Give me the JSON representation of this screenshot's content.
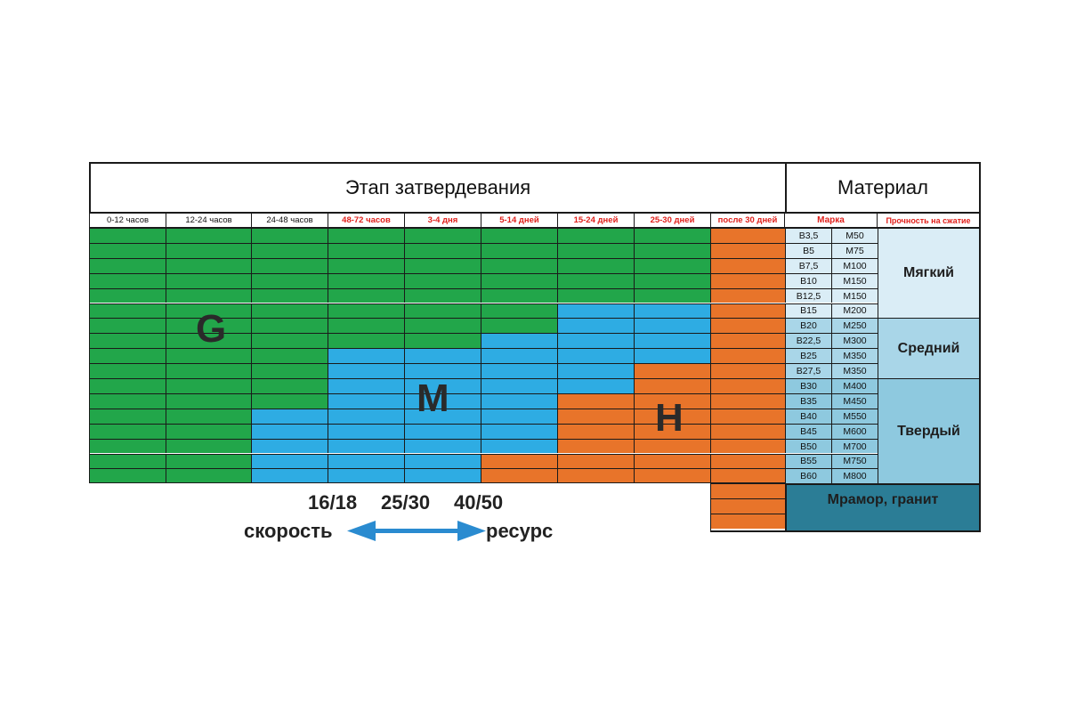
{
  "header": {
    "stage_title": "Этап затвердевания",
    "material_title": "Материал"
  },
  "stages": [
    {
      "label": "0-12 часов",
      "emphasis": false
    },
    {
      "label": "12-24 часов",
      "emphasis": false
    },
    {
      "label": "24-48 часов",
      "emphasis": false
    },
    {
      "label": "48-72 часов",
      "emphasis": true
    },
    {
      "label": "3-4 дня",
      "emphasis": true
    },
    {
      "label": "5-14 дней",
      "emphasis": true
    },
    {
      "label": "15-24 дней",
      "emphasis": true
    },
    {
      "label": "25-30 дней",
      "emphasis": true
    },
    {
      "label": "после 30 дней",
      "emphasis": true
    }
  ],
  "material_headers": {
    "grade": "Марка",
    "strength": "Прочность на сжатие"
  },
  "grades": [
    {
      "b": "B3,5",
      "m": "M50"
    },
    {
      "b": "B5",
      "m": "M75"
    },
    {
      "b": "B7,5",
      "m": "M100"
    },
    {
      "b": "B10",
      "m": "M150"
    },
    {
      "b": "B12,5",
      "m": "M150"
    },
    {
      "b": "B15",
      "m": "M200"
    },
    {
      "b": "B20",
      "m": "M250"
    },
    {
      "b": "B22,5",
      "m": "M300"
    },
    {
      "b": "B25",
      "m": "M350"
    },
    {
      "b": "B27,5",
      "m": "M350"
    },
    {
      "b": "B30",
      "m": "M400"
    },
    {
      "b": "B35",
      "m": "M450"
    },
    {
      "b": "B40",
      "m": "M550"
    },
    {
      "b": "B45",
      "m": "M600"
    },
    {
      "b": "B50",
      "m": "M700"
    },
    {
      "b": "B55",
      "m": "M750"
    },
    {
      "b": "B60",
      "m": "M800"
    }
  ],
  "strength_groups": [
    {
      "label": "Мягкий",
      "from_row": 0,
      "to_row": 5,
      "color": "#daedf6"
    },
    {
      "label": "Средний",
      "from_row": 6,
      "to_row": 9,
      "color": "#a9d6e8"
    },
    {
      "label": "Твердый",
      "from_row": 10,
      "to_row": 16,
      "color": "#8ec9df"
    }
  ],
  "stone_row": {
    "label": "Мрамор, гранит",
    "color": "#2b7d96"
  },
  "zones": [
    {
      "letter": "G",
      "color": "#22a64a",
      "name": "green"
    },
    {
      "letter": "M",
      "color": "#2eace3",
      "name": "blue"
    },
    {
      "letter": "H",
      "color": "#e8742a",
      "name": "orange"
    }
  ],
  "zone_boundaries": {
    "description": "for each stage column (0..7), number of top rows in G zone, and first row index of H zone (17 = none)",
    "g_rows": [
      17,
      17,
      12,
      8,
      8,
      7,
      5,
      5
    ],
    "h_start": [
      17,
      17,
      17,
      17,
      17,
      15,
      11,
      9
    ]
  },
  "legend": {
    "numbers": [
      "16/18",
      "25/30",
      "40/50"
    ],
    "left_word": "скорость",
    "right_word": "ресурс",
    "arrow_color": "#2a8bd0"
  },
  "colors": {
    "emphasis_text": "#e0201b",
    "normal_text": "#111111",
    "grid_line": "#1a1a1a"
  }
}
